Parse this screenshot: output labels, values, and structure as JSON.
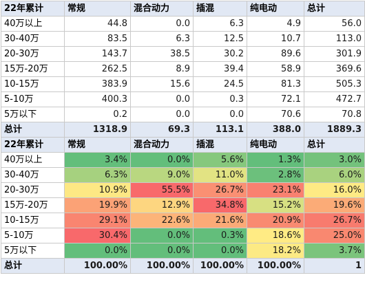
{
  "table1": {
    "headers": [
      "22年累计",
      "常规",
      "混合动力",
      "插混",
      "纯电动",
      "总计"
    ],
    "rows": [
      {
        "label": "40万以上",
        "values": [
          "44.8",
          "0.0",
          "6.3",
          "4.9",
          "56.0"
        ]
      },
      {
        "label": "30-40万",
        "values": [
          "83.5",
          "6.3",
          "12.5",
          "10.7",
          "113.0"
        ]
      },
      {
        "label": "20-30万",
        "values": [
          "143.7",
          "38.5",
          "30.2",
          "89.6",
          "301.9"
        ]
      },
      {
        "label": "15万-20万",
        "values": [
          "262.5",
          "8.9",
          "39.4",
          "58.9",
          "369.6"
        ]
      },
      {
        "label": "10-15万",
        "values": [
          "383.9",
          "15.6",
          "24.5",
          "81.3",
          "505.3"
        ]
      },
      {
        "label": "5-10万",
        "values": [
          "400.3",
          "0.0",
          "0.3",
          "72.1",
          "472.7"
        ]
      },
      {
        "label": "5万以下",
        "values": [
          "0.2",
          "0.0",
          "0.0",
          "70.6",
          "70.8"
        ]
      }
    ],
    "total": {
      "label": "总计",
      "values": [
        "1318.9",
        "69.3",
        "113.1",
        "388.0",
        "1889.3"
      ]
    }
  },
  "table2": {
    "headers": [
      "22年累计",
      "常规",
      "混合动力",
      "插混",
      "纯电动",
      "总计"
    ],
    "rows": [
      {
        "label": "40万以上",
        "values": [
          "3.4%",
          "0.0%",
          "5.6%",
          "1.3%",
          "3.0%"
        ],
        "colors": [
          "#63be7b",
          "#63be7b",
          "#86c87d",
          "#63be7b",
          "#74c27c"
        ]
      },
      {
        "label": "30-40万",
        "values": [
          "6.3%",
          "9.0%",
          "11.0%",
          "2.8%",
          "6.0%"
        ],
        "colors": [
          "#a6d17f",
          "#b9d780",
          "#e2e383",
          "#6cc07c",
          "#a9d27f"
        ]
      },
      {
        "label": "20-30万",
        "values": [
          "10.9%",
          "55.5%",
          "26.7%",
          "23.1%",
          "16.0%"
        ],
        "colors": [
          "#fde884",
          "#f8696b",
          "#fa9073",
          "#f98170",
          "#feea84"
        ]
      },
      {
        "label": "15万-20万",
        "values": [
          "19.9%",
          "12.9%",
          "34.8%",
          "15.2%",
          "19.6%"
        ],
        "colors": [
          "#fba276",
          "#fdd680",
          "#f8696b",
          "#d7e082",
          "#fbab77"
        ]
      },
      {
        "label": "10-15万",
        "values": [
          "29.1%",
          "22.6%",
          "21.6%",
          "20.9%",
          "26.7%"
        ],
        "colors": [
          "#f98570",
          "#fcb479",
          "#fbaa77",
          "#f98a71",
          "#f87b6e"
        ]
      },
      {
        "label": "5-10万",
        "values": [
          "30.4%",
          "0.0%",
          "0.3%",
          "18.6%",
          "25.0%"
        ],
        "colors": [
          "#f8696b",
          "#63be7b",
          "#63be7b",
          "#ffeb84",
          "#f98870"
        ]
      },
      {
        "label": "5万以下",
        "values": [
          "0.0%",
          "0.0%",
          "0.0%",
          "18.2%",
          "3.7%"
        ],
        "colors": [
          "#63be7b",
          "#63be7b",
          "#63be7b",
          "#fcea84",
          "#7bc47c"
        ]
      }
    ],
    "total": {
      "label": "总计",
      "values": [
        "100.00%",
        "100.00%",
        "100.00%",
        "100.00%",
        "1"
      ]
    }
  }
}
